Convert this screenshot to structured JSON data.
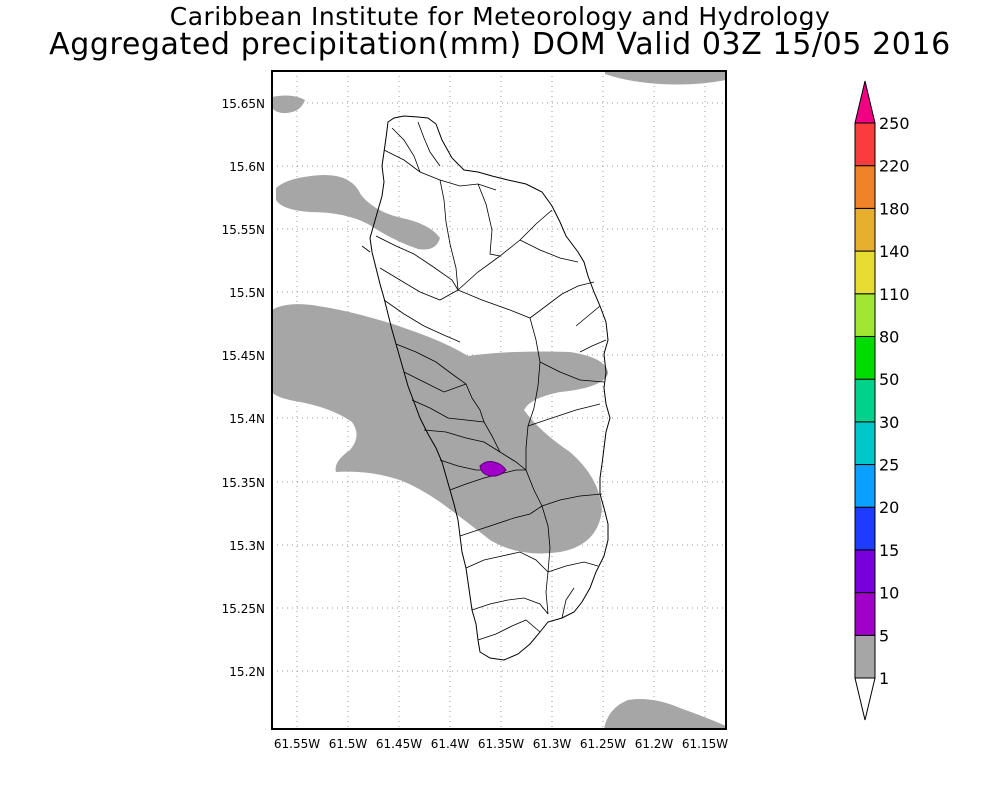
{
  "header": {
    "institute": "Caribbean Institute for Meteorology and Hydrology",
    "product": "Aggregated precipitation(mm) DOM Valid 03Z 15/05 2016"
  },
  "map": {
    "region": "Dominica",
    "lat_ticks": [
      "15.65N",
      "15.6N",
      "15.55N",
      "15.5N",
      "15.45N",
      "15.4N",
      "15.35N",
      "15.3N",
      "15.25N",
      "15.2N"
    ],
    "lon_ticks": [
      "61.55W",
      "61.5W",
      "61.45W",
      "61.4W",
      "61.35W",
      "61.3W",
      "61.25W",
      "61.2W",
      "61.15W"
    ],
    "grid": "dotted"
  },
  "colorbar": {
    "labels": [
      "1",
      "5",
      "10",
      "15",
      "20",
      "25",
      "30",
      "50",
      "80",
      "110",
      "140",
      "180",
      "220",
      "250"
    ],
    "colors": [
      "#a6a6a6",
      "#a000c8",
      "#7800dc",
      "#1e3cff",
      "#0aa0ff",
      "#00c8c8",
      "#00d28c",
      "#00dc00",
      "#a0e632",
      "#e6dc32",
      "#e6af2d",
      "#f08228",
      "#fa3c3c",
      "#f00082"
    ]
  },
  "colors": {
    "rain_1_5": "#a6a6a6",
    "rain_5_10": "#a000c8"
  }
}
